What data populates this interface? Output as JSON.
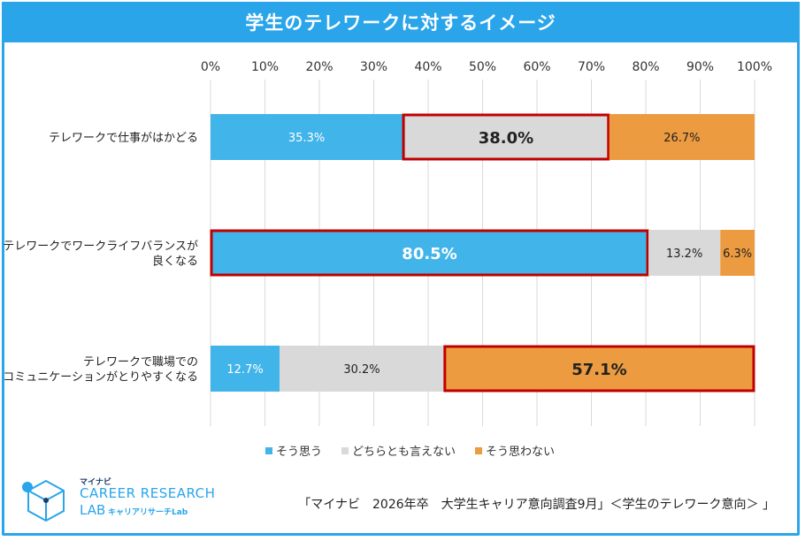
{
  "header": {
    "title": "学生のテレワークに対するイメージ"
  },
  "chart_data": {
    "type": "bar",
    "orientation": "horizontal-stacked-100",
    "xlim": [
      0,
      100
    ],
    "ticks": [
      "0%",
      "10%",
      "20%",
      "30%",
      "40%",
      "50%",
      "60%",
      "70%",
      "80%",
      "90%",
      "100%"
    ],
    "categories": [
      [
        "テレワークで仕事がはかどる"
      ],
      [
        "テレワークでワークライフバランスが",
        "良くなる"
      ],
      [
        "テレワークで職場での",
        "コミュニケーションがとりやすくなる"
      ]
    ],
    "series": [
      {
        "name": "そう思う",
        "color": "#41b4e9",
        "values": [
          35.3,
          80.5,
          12.7
        ],
        "labels": [
          "35.3%",
          "80.5%",
          "12.7%"
        ]
      },
      {
        "name": "どちらとも言えない",
        "color": "#d9d9d9",
        "values": [
          38.0,
          13.2,
          30.2
        ],
        "labels": [
          "38.0%",
          "13.2%",
          "30.2%"
        ]
      },
      {
        "name": "そう思わない",
        "color": "#ec9b40",
        "values": [
          26.7,
          6.3,
          57.1
        ],
        "labels": [
          "26.7%",
          "6.3%",
          "57.1%"
        ]
      }
    ],
    "highlighted": [
      [
        0,
        1
      ],
      [
        1,
        0
      ],
      [
        2,
        2
      ]
    ],
    "highlight_color": "#c00000"
  },
  "footer": {
    "logo_top": "マイナビ",
    "logo_main": "CAREER RESEARCH",
    "logo_lab": "LAB",
    "logo_sub": "キャリアリサーチLab",
    "source": "「マイナビ　2026年卒　大学生キャリア意向調査9月」＜学生のテレワーク意向＞ 」"
  }
}
